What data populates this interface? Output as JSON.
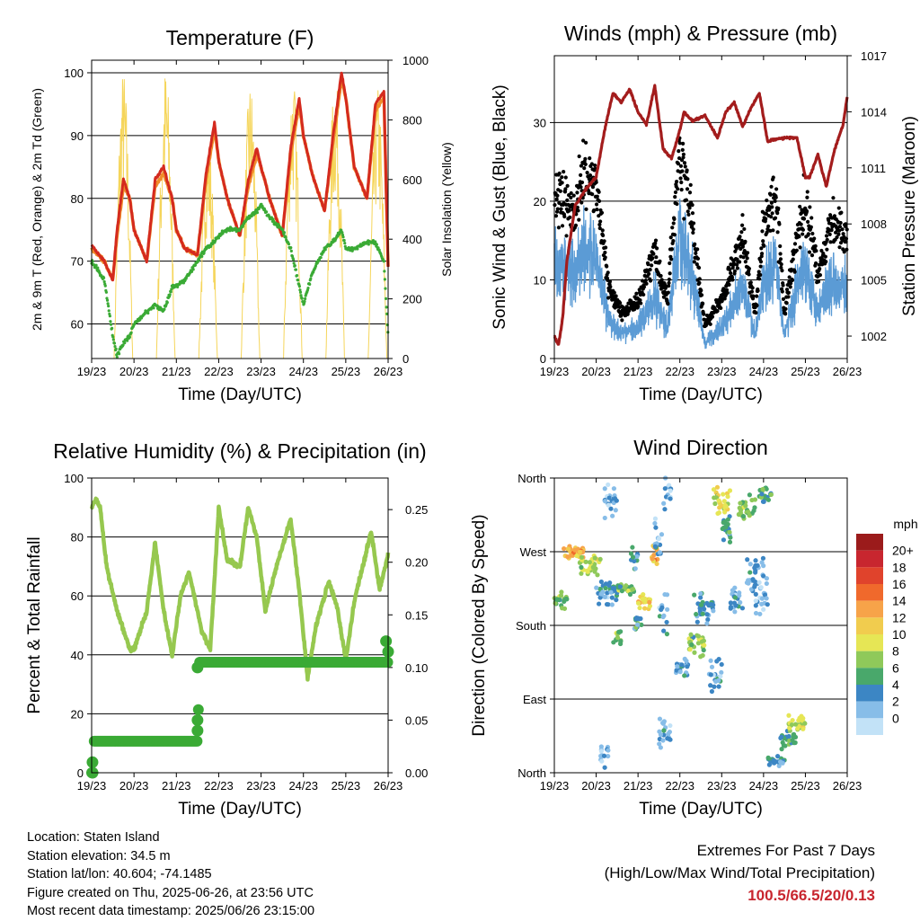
{
  "x_ticks": [
    "19/23",
    "20/23",
    "21/23",
    "22/23",
    "23/23",
    "24/23",
    "25/23",
    "26/23"
  ],
  "colors": {
    "temp2m": "#d42a1e",
    "temp9m": "#f08c2a",
    "dewpoint": "#3aaa35",
    "solar": "#f5d55a",
    "wind": "#5b9bd5",
    "gust": "#000000",
    "pressure": "#a31c1c",
    "rh": "#96c84f",
    "precip": "#3aaa35"
  },
  "chart_data": [
    {
      "type": "line",
      "title": "Temperature (F)",
      "xlabel": "Time (Day/UTC)",
      "ylabel": "2m & 9m T (Red, Orange) & 2m Td (Green)",
      "y2label": "Solar Insolation (Yellow)",
      "ylim": [
        54.5,
        102
      ],
      "y_ticks": [
        60,
        70,
        80,
        90,
        100
      ],
      "y2lim": [
        0,
        1000
      ],
      "y2_ticks": [
        0,
        200,
        400,
        600,
        800,
        1000
      ],
      "x": [
        0,
        0.3,
        0.5,
        0.6,
        0.75,
        0.9,
        1.0,
        1.3,
        1.5,
        1.7,
        1.9,
        2.0,
        2.2,
        2.5,
        2.7,
        2.9,
        3.0,
        3.2,
        3.5,
        3.7,
        3.9,
        4.0,
        4.2,
        4.5,
        4.7,
        4.9,
        5.0,
        5.2,
        5.5,
        5.7,
        5.9,
        6.0,
        6.2,
        6.5,
        6.7,
        6.9,
        7.0
      ],
      "series": [
        {
          "name": "2m T",
          "values": [
            72.5,
            70,
            67,
            75,
            83,
            80,
            75,
            70,
            83,
            85,
            80,
            75,
            72,
            71,
            84,
            92,
            86,
            80,
            74,
            83,
            88,
            85,
            80,
            74,
            88,
            96,
            90,
            84,
            78,
            90,
            100,
            96,
            85,
            80,
            95,
            97,
            69
          ]
        },
        {
          "name": "9m T",
          "values": [
            72,
            70,
            67,
            74,
            82,
            80,
            75,
            70,
            82,
            84,
            80,
            75,
            72,
            71,
            83,
            91,
            86,
            80,
            74,
            82,
            87,
            85,
            80,
            74,
            87,
            95,
            90,
            84,
            78,
            89,
            99,
            96,
            85,
            80,
            94,
            96,
            69
          ]
        },
        {
          "name": "2m Td",
          "values": [
            70,
            67,
            58,
            55,
            57,
            58,
            60,
            62,
            63,
            62,
            66,
            66,
            67,
            70,
            72,
            73,
            74,
            75,
            75,
            77,
            78,
            79,
            77,
            75,
            72,
            66,
            63,
            68,
            72,
            73,
            75,
            72,
            72,
            73,
            73,
            70,
            58
          ]
        },
        {
          "name": "Solar",
          "days": [
            0.75,
            1.75,
            2.75,
            3.75,
            4.75,
            5.75,
            6.75
          ],
          "peaks": [
            980,
            990,
            760,
            940,
            970,
            960,
            920
          ]
        }
      ]
    },
    {
      "type": "scatter",
      "title": "Winds (mph) & Pressure (mb)",
      "xlabel": "Time (Day/UTC)",
      "ylabel": "Sonic Wind & Gust (Blue, Black)",
      "y2label": "Station Pressure (Maroon)",
      "ylim": [
        0,
        38.5
      ],
      "y_ticks": [
        0,
        10,
        20,
        30
      ],
      "y2lim": [
        1000.8,
        1017
      ],
      "y2_ticks": [
        1002,
        1005,
        1008,
        1011,
        1014,
        1017
      ],
      "wind_mean_x": [
        0,
        0.5,
        0.7,
        1.0,
        1.3,
        1.6,
        2.0,
        2.4,
        2.7,
        3.0,
        3.3,
        3.6,
        4.0,
        4.5,
        4.8,
        5.0,
        5.3,
        5.5,
        5.8,
        6.0,
        6.3,
        6.6,
        7.0
      ],
      "wind_mean": [
        12,
        11,
        14,
        13,
        5,
        3,
        4,
        8,
        4,
        16,
        10,
        2,
        4,
        9,
        3,
        10,
        12,
        3,
        9,
        12,
        6,
        10,
        9
      ],
      "pressure_x": [
        0,
        0.1,
        0.2,
        0.3,
        0.5,
        0.8,
        1.0,
        1.2,
        1.4,
        1.6,
        1.8,
        2.0,
        2.2,
        2.4,
        2.6,
        2.8,
        3.0,
        3.1,
        3.3,
        3.6,
        3.9,
        4.1,
        4.3,
        4.5,
        4.7,
        4.9,
        5.1,
        5.2,
        5.5,
        5.8,
        6.0,
        6.1,
        6.3,
        6.5,
        6.7,
        6.9,
        7.0
      ],
      "pressure": [
        1002,
        1001.5,
        1003,
        1006,
        1009,
        1010,
        1010.5,
        1013,
        1015,
        1014.5,
        1015.2,
        1014,
        1013.3,
        1015.4,
        1012,
        1011.5,
        1013,
        1014,
        1013.5,
        1013.8,
        1012.6,
        1014,
        1014.5,
        1013.2,
        1014.2,
        1015,
        1012.4,
        1012.5,
        1012.6,
        1012.6,
        1010.5,
        1010.5,
        1011.7,
        1010,
        1012,
        1013.3,
        1014.8
      ]
    },
    {
      "type": "line",
      "title": "Relative Humidity (%) & Precipitation (in)",
      "xlabel": "Time (Day/UTC)",
      "ylabel": "Percent & Total Rainfall",
      "ylim": [
        0,
        100
      ],
      "y_ticks": [
        0,
        20,
        40,
        60,
        80,
        100
      ],
      "y2lim": [
        0,
        0.28
      ],
      "y2_ticks": [
        "0.00",
        "0.05",
        "0.10",
        "0.15",
        "0.20",
        "0.25"
      ],
      "rh_x": [
        0,
        0.1,
        0.2,
        0.35,
        0.6,
        0.9,
        1.0,
        1.3,
        1.5,
        1.7,
        1.9,
        2.1,
        2.3,
        2.6,
        2.8,
        2.9,
        3.0,
        3.2,
        3.5,
        3.7,
        3.9,
        4.1,
        4.4,
        4.7,
        4.9,
        5.1,
        5.3,
        5.6,
        5.8,
        6.0,
        6.2,
        6.4,
        6.6,
        6.8,
        7.0
      ],
      "rh": [
        90,
        93,
        90,
        70,
        55,
        42,
        42,
        55,
        78,
        55,
        40,
        60,
        68,
        48,
        42,
        65,
        90,
        72,
        70,
        90,
        80,
        55,
        72,
        86,
        62,
        32,
        50,
        65,
        56,
        38,
        58,
        70,
        82,
        62,
        74
      ],
      "precip_x": [
        0,
        0.05,
        0.08,
        2.45,
        2.5,
        2.52,
        6.9,
        7.0
      ],
      "precip": [
        0.0,
        0.03,
        0.03,
        0.03,
        0.06,
        0.105,
        0.105,
        0.125
      ]
    },
    {
      "type": "scatter",
      "title": "Wind Direction",
      "xlabel": "Time (Day/UTC)",
      "ylabel": "Direction (Colored By Speed)",
      "y_ticks": [
        "North",
        "East",
        "South",
        "West",
        "North"
      ],
      "colorbar": {
        "unit": "mph",
        "labels": [
          "20+",
          "18",
          "16",
          "14",
          "12",
          "10",
          "8",
          "6",
          "4",
          "2",
          "0"
        ],
        "colors": [
          "#9b1b1b",
          "#c8262f",
          "#e0432c",
          "#f0692c",
          "#f7a349",
          "#f1cc4e",
          "#e6e655",
          "#8fc95a",
          "#49a86b",
          "#3c86c4",
          "#87bde8",
          "#c2e2f7"
        ]
      }
    }
  ],
  "info": [
    "Location: Staten Island",
    "Station elevation: 34.5 m",
    "Station lat/lon: 40.604; -74.1485",
    "Figure created on Thu, 2025-06-26, at 23:56 UTC",
    "Most recent data timestamp: 2025/06/26 23:15:00"
  ],
  "extremes": {
    "line1": "Extremes For Past 7 Days",
    "line2": "(High/Low/Max Wind/Total Precipitation)",
    "values": "100.5/66.5/20/0.13"
  }
}
